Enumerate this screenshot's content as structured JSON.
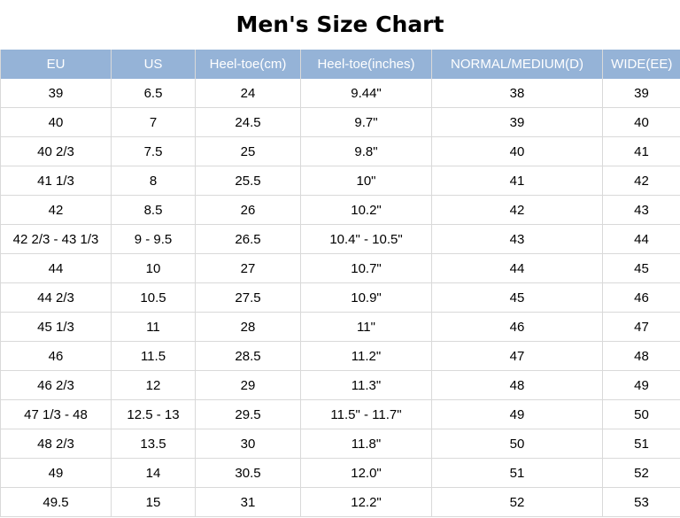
{
  "title": "Men's Size Chart",
  "headers": [
    "EU",
    "US",
    "Heel-toe(cm)",
    "Heel-toe(inches)",
    "NORMAL/MEDIUM(D)",
    "WIDE(EE)"
  ],
  "rows": [
    [
      "39",
      "6.5",
      "24",
      "9.44\"",
      "38",
      "39"
    ],
    [
      "40",
      "7",
      "24.5",
      "9.7\"",
      "39",
      "40"
    ],
    [
      "40 2/3",
      "7.5",
      "25",
      "9.8\"",
      "40",
      "41"
    ],
    [
      "41 1/3",
      "8",
      "25.5",
      "10\"",
      "41",
      "42"
    ],
    [
      "42",
      "8.5",
      "26",
      "10.2\"",
      "42",
      "43"
    ],
    [
      "42 2/3 - 43 1/3",
      "9 - 9.5",
      "26.5",
      "10.4\" - 10.5\"",
      "43",
      "44"
    ],
    [
      "44",
      "10",
      "27",
      "10.7\"",
      "44",
      "45"
    ],
    [
      "44 2/3",
      "10.5",
      "27.5",
      "10.9\"",
      "45",
      "46"
    ],
    [
      "45 1/3",
      "11",
      "28",
      "11\"",
      "46",
      "47"
    ],
    [
      "46",
      "11.5",
      "28.5",
      "11.2\"",
      "47",
      "48"
    ],
    [
      "46 2/3",
      "12",
      "29",
      "11.3\"",
      "48",
      "49"
    ],
    [
      "47 1/3 - 48",
      "12.5 - 13",
      "29.5",
      "11.5\" - 11.7\"",
      "49",
      "50"
    ],
    [
      "48 2/3",
      "13.5",
      "30",
      "11.8\"",
      "50",
      "51"
    ],
    [
      "49",
      "14",
      "30.5",
      "12.0\"",
      "51",
      "52"
    ],
    [
      "49.5",
      "15",
      "31",
      "12.2\"",
      "52",
      "53"
    ]
  ],
  "colors": {
    "header_bg": "#95b3d7",
    "header_text": "#ffffff",
    "grid_line": "#d9d9d9"
  }
}
